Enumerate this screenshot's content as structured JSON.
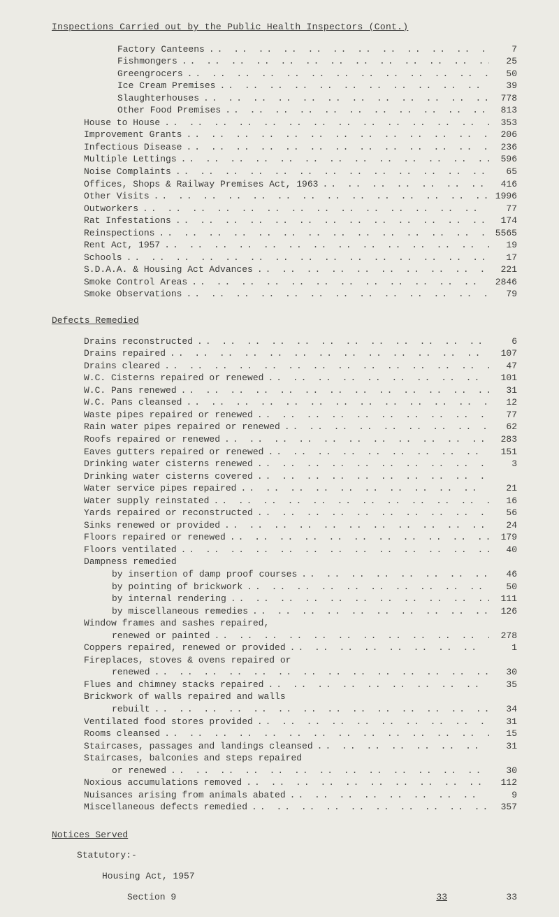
{
  "title": "Inspections Carried out by the Public Health Inspectors (Cont.)",
  "sections": {
    "inspections": [
      {
        "label": "Factory Canteens",
        "value": "7",
        "indent": 1
      },
      {
        "label": "Fishmongers",
        "value": "25",
        "indent": 1
      },
      {
        "label": "Greengrocers",
        "value": "50",
        "indent": 1
      },
      {
        "label": "Ice Cream Premises",
        "value": "39",
        "indent": 1
      },
      {
        "label": "Slaughterhouses",
        "value": "778",
        "indent": 1
      },
      {
        "label": "Other Food Premises",
        "value": "813",
        "indent": 1
      },
      {
        "label": "House to House",
        "value": "353",
        "indent": 0
      },
      {
        "label": "Improvement Grants",
        "value": "206",
        "indent": 0
      },
      {
        "label": "Infectious Disease",
        "value": "236",
        "indent": 0
      },
      {
        "label": "Multiple Lettings",
        "value": "596",
        "indent": 0
      },
      {
        "label": "Noise Complaints",
        "value": "65",
        "indent": 0
      },
      {
        "label": "Offices, Shops & Railway Premises Act, 1963",
        "value": "416",
        "indent": 0
      },
      {
        "label": "Other Visits",
        "value": "1996",
        "indent": 0
      },
      {
        "label": "Outworkers",
        "value": "77",
        "indent": 0
      },
      {
        "label": "Rat Infestations",
        "value": "174",
        "indent": 0
      },
      {
        "label": "Reinspections",
        "value": "5565",
        "indent": 0
      },
      {
        "label": "Rent Act, 1957",
        "value": "19",
        "indent": 0
      },
      {
        "label": "Schools",
        "value": "17",
        "indent": 0
      },
      {
        "label": "S.D.A.A. & Housing Act Advances",
        "value": "221",
        "indent": 0
      },
      {
        "label": "Smoke Control Areas",
        "value": "2846",
        "indent": 0
      },
      {
        "label": "Smoke Observations",
        "value": "79",
        "indent": 0
      }
    ],
    "defects_title": "Defects Remedied",
    "defects": [
      {
        "label": "Drains reconstructed",
        "value": "6",
        "indent": 0
      },
      {
        "label": "Drains repaired",
        "value": "107",
        "indent": 0
      },
      {
        "label": "Drains cleared",
        "value": "47",
        "indent": 0
      },
      {
        "label": "W.C. Cisterns repaired or renewed",
        "value": "101",
        "indent": 0
      },
      {
        "label": "W.C. Pans renewed",
        "value": "31",
        "indent": 0
      },
      {
        "label": "W.C. Pans cleansed",
        "value": "12",
        "indent": 0
      },
      {
        "label": "Waste pipes repaired or renewed",
        "value": "77",
        "indent": 0
      },
      {
        "label": "Rain water pipes repaired or renewed",
        "value": "62",
        "indent": 0
      },
      {
        "label": "Roofs repaired or renewed",
        "value": "283",
        "indent": 0
      },
      {
        "label": "Eaves gutters repaired or renewed",
        "value": "151",
        "indent": 0
      },
      {
        "label": "Drinking water cisterns renewed",
        "value": "3",
        "indent": 0
      },
      {
        "label": "Drinking water cisterns covered",
        "value": "",
        "indent": 0
      },
      {
        "label": "Water service pipes repaired",
        "value": "21",
        "indent": 0
      },
      {
        "label": "Water supply reinstated",
        "value": "16",
        "indent": 0
      },
      {
        "label": "Yards repaired or reconstructed",
        "value": "56",
        "indent": 0
      },
      {
        "label": "Sinks renewed or provided",
        "value": "24",
        "indent": 0
      },
      {
        "label": "Floors repaired or renewed",
        "value": "179",
        "indent": 0
      },
      {
        "label": "Floors ventilated",
        "value": "40",
        "indent": 0
      },
      {
        "label": "Dampness remedied",
        "value": "",
        "indent": 0,
        "nodots": true
      },
      {
        "label": "by insertion of damp proof courses",
        "value": "46",
        "indent": 2
      },
      {
        "label": "by pointing of brickwork",
        "value": "50",
        "indent": 2
      },
      {
        "label": "by internal rendering",
        "value": "111",
        "indent": 2
      },
      {
        "label": "by miscellaneous remedies",
        "value": "126",
        "indent": 2
      },
      {
        "label": "Window frames and sashes repaired,",
        "value": "",
        "indent": 0,
        "nodots": true
      },
      {
        "label": "renewed or painted",
        "value": "278",
        "indent": 2
      },
      {
        "label": "Coppers repaired, renewed or provided",
        "value": "1",
        "indent": 0
      },
      {
        "label": "Fireplaces, stoves & ovens repaired or",
        "value": "",
        "indent": 0,
        "nodots": true
      },
      {
        "label": "renewed",
        "value": "30",
        "indent": 2
      },
      {
        "label": "Flues and chimney stacks repaired",
        "value": "35",
        "indent": 0
      },
      {
        "label": "Brickwork of walls repaired and walls",
        "value": "",
        "indent": 0,
        "nodots": true
      },
      {
        "label": "rebuilt",
        "value": "34",
        "indent": 2
      },
      {
        "label": "Ventilated food stores provided",
        "value": "31",
        "indent": 0
      },
      {
        "label": "Rooms cleansed",
        "value": "15",
        "indent": 0
      },
      {
        "label": "Staircases, passages and landings cleansed",
        "value": "31",
        "indent": 0
      },
      {
        "label": "Staircases, balconies and steps repaired",
        "value": "",
        "indent": 0,
        "nodots": true
      },
      {
        "label": "or renewed",
        "value": "30",
        "indent": 2
      },
      {
        "label": "Noxious accumulations removed",
        "value": "112",
        "indent": 0
      },
      {
        "label": "Nuisances arising from animals abated",
        "value": "9",
        "indent": 0
      },
      {
        "label": "Miscellaneous defects remedied",
        "value": "357",
        "indent": 0
      }
    ],
    "notices_title": "Notices Served",
    "statutory_label": "Statutory:-",
    "housing_act": "Housing Act, 1957",
    "footer": {
      "label": "Section 9",
      "page_underlined": "33",
      "count": "33"
    }
  },
  "dots": ".. .. .. .. .. .. .. .. .. .. .. .. .. .. .. .. .. .."
}
